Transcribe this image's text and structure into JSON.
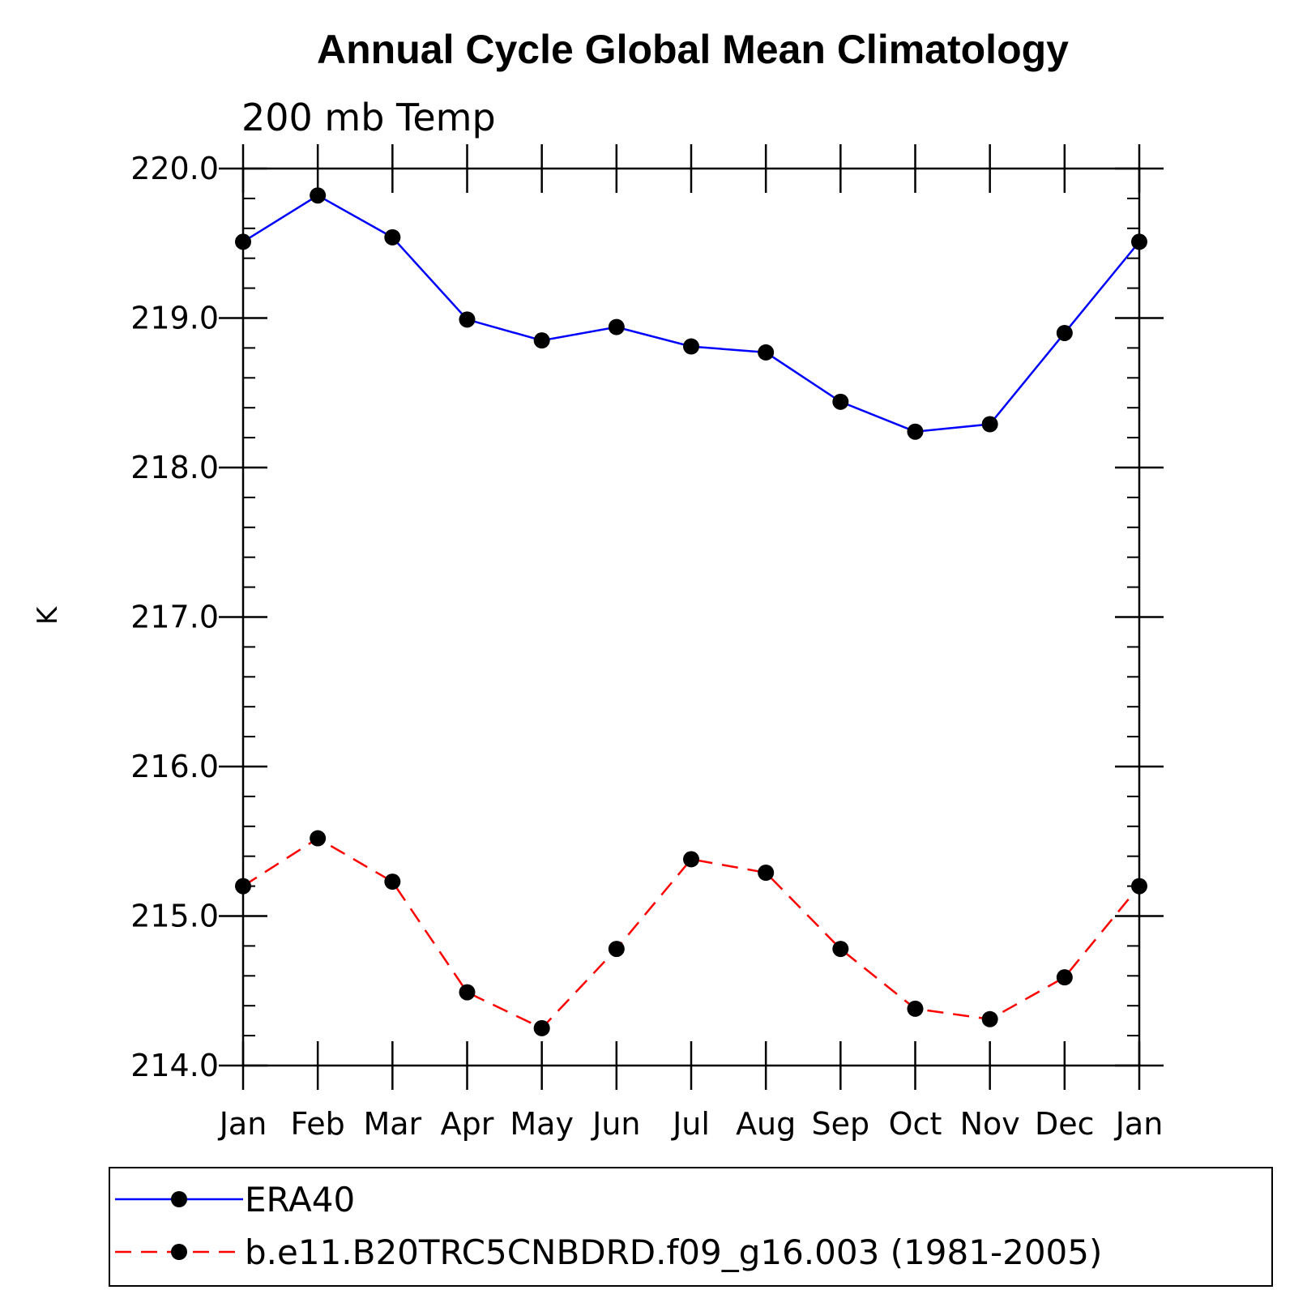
{
  "chart_data": {
    "type": "line",
    "title": "Annual Cycle Global Mean Climatology",
    "subtitle": "200 mb Temp",
    "ylabel": "K",
    "xlabel": "",
    "categories": [
      "Jan",
      "Feb",
      "Mar",
      "Apr",
      "May",
      "Jun",
      "Jul",
      "Aug",
      "Sep",
      "Oct",
      "Nov",
      "Dec",
      "Jan"
    ],
    "ylim": [
      214.0,
      220.0
    ],
    "yticks": [
      "214.0",
      "215.0",
      "216.0",
      "217.0",
      "218.0",
      "219.0",
      "220.0"
    ],
    "series": [
      {
        "name": "ERA40",
        "color": "#0000ff",
        "line_style": "solid",
        "marker": "filled-circle",
        "values": [
          219.51,
          219.82,
          219.54,
          218.99,
          218.85,
          218.94,
          218.81,
          218.77,
          218.44,
          218.24,
          218.29,
          218.9,
          219.51
        ]
      },
      {
        "name": "b.e11.B20TRC5CNBDRD.f09_g16.003 (1981-2005)",
        "color": "#ff0000",
        "line_style": "dashed",
        "marker": "filled-circle",
        "values": [
          215.2,
          215.52,
          215.23,
          214.49,
          214.25,
          214.78,
          215.38,
          215.29,
          214.78,
          214.38,
          214.31,
          214.59,
          215.2
        ]
      }
    ],
    "legend_position": "bottom"
  }
}
